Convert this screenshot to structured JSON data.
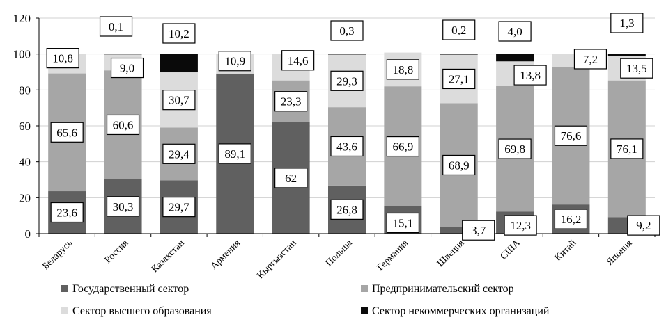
{
  "chart_data": {
    "type": "bar",
    "stacked": true,
    "categories": [
      "Беларусь",
      "Россия",
      "Казахстан",
      "Армения",
      "Кыргызстан",
      "Польша",
      "Германия",
      "Швеция",
      "США",
      "Китай",
      "Япония"
    ],
    "series": [
      {
        "name": "Государственный сектор",
        "color": "#606060",
        "values": [
          23.6,
          30.3,
          29.7,
          89.1,
          62,
          26.8,
          15.1,
          3.7,
          12.3,
          16.2,
          9.2
        ]
      },
      {
        "name": "Предпринимательский сектор",
        "color": "#a6a6a6",
        "values": [
          65.6,
          60.6,
          29.4,
          0,
          23.3,
          43.6,
          66.9,
          68.9,
          69.8,
          76.6,
          76.1
        ]
      },
      {
        "name": "Сектор высшего образования",
        "color": "#dcdcdc",
        "values": [
          10.8,
          9.0,
          30.7,
          10.9,
          14.6,
          29.3,
          18.8,
          27.1,
          13.8,
          7.2,
          13.5
        ]
      },
      {
        "name": "Сектор некоммерческих организаций",
        "color": "#0a0a0a",
        "values": [
          0,
          0.1,
          10.2,
          0,
          0,
          0.3,
          0,
          0.2,
          4.0,
          0,
          1.3
        ]
      }
    ],
    "data_labels": [
      [
        "23,6",
        "65,6",
        "10,8",
        ""
      ],
      [
        "30,3",
        "60,6",
        "9,0",
        "0,1"
      ],
      [
        "29,7",
        "29,4",
        "30,7",
        "10,2"
      ],
      [
        "89,1",
        "",
        "10,9",
        ""
      ],
      [
        "62",
        "23,3",
        "14,6",
        ""
      ],
      [
        "26,8",
        "43,6",
        "29,3",
        "0,3"
      ],
      [
        "15,1",
        "66,9",
        "18,8",
        ""
      ],
      [
        "3,7",
        "68,9",
        "27,1",
        "0,2"
      ],
      [
        "12,3",
        "69,8",
        "13,8",
        "4,0"
      ],
      [
        "16,2",
        "76,6",
        "7,2",
        ""
      ],
      [
        "9,2",
        "76,1",
        "13,5",
        "1,3"
      ]
    ],
    "ylim": [
      0,
      120
    ],
    "yticks": [
      "0",
      "20",
      "40",
      "60",
      "80",
      "100",
      "120"
    ],
    "grid": true,
    "legend_position": "bottom",
    "title": "",
    "xlabel": "",
    "ylabel": ""
  }
}
